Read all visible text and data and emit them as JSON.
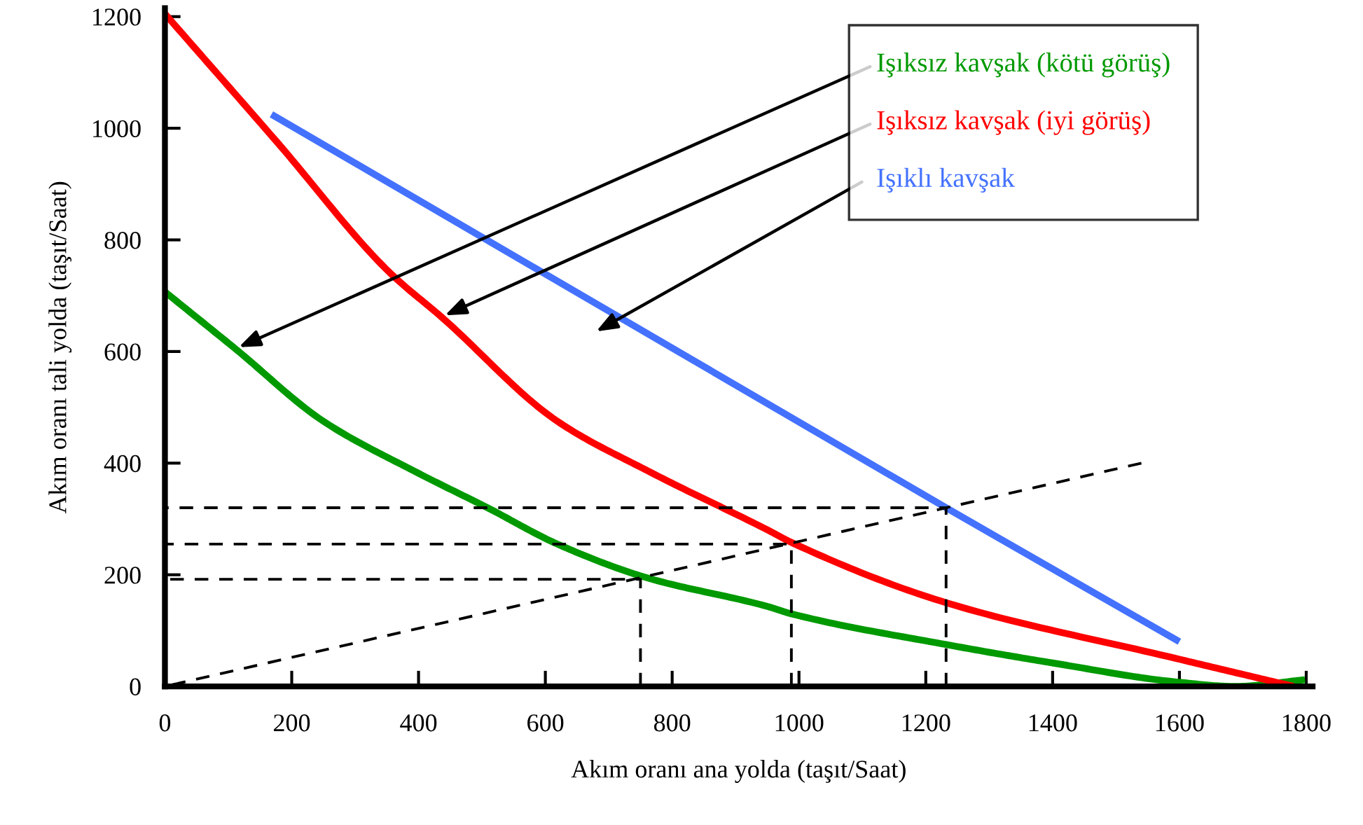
{
  "chart_data": {
    "type": "line",
    "xlabel": "Akım oranı ana yolda (taşıt/Saat)",
    "ylabel": "Akım oranı tali yolda (taşıt/Saat)",
    "xlim": [
      0,
      1810
    ],
    "ylim": [
      0,
      1215
    ],
    "xticks": [
      0,
      200,
      400,
      600,
      800,
      1000,
      1200,
      1400,
      1600,
      1800
    ],
    "yticks": [
      0,
      200,
      400,
      600,
      800,
      1000,
      1200
    ],
    "grid": false,
    "legend": "top right",
    "line_style": "solid",
    "marker": "none",
    "series": [
      {
        "name": "Işıksız kavşak (kötü görüş)",
        "color": "#009900",
        "x": [
          0,
          111,
          250,
          398,
          509,
          619,
          759,
          951,
          988,
          1232,
          1400,
          1595,
          1688,
          1798
        ],
        "values": [
          707,
          605,
          475,
          383,
          320,
          255,
          195,
          143,
          130,
          75,
          42,
          8,
          0,
          12
        ]
      },
      {
        "name": "Işıksız kavşak (iyi görüş)",
        "color": "#ff0000",
        "x": [
          0,
          177,
          354,
          436,
          619,
          767,
          951,
          988,
          1232,
          1595,
          1780
        ],
        "values": [
          1205,
          975,
          742,
          662,
          475,
          383,
          280,
          258,
          150,
          50,
          0
        ]
      },
      {
        "name": "Işıklı kavşak",
        "color": "#4472ff",
        "x": [
          168,
          1232,
          1600
        ],
        "values": [
          1025,
          320,
          80
        ]
      },
      {
        "color": "#000000",
        "line_style": "dashed",
        "x": [
          0,
          1540
        ],
        "values": [
          0,
          400
        ]
      },
      {
        "color": "#000000",
        "line_style": "dashed",
        "x": [
          0,
          750,
          750
        ],
        "values": [
          192,
          192,
          0
        ]
      },
      {
        "color": "#000000",
        "line_style": "dashed",
        "x": [
          0,
          988,
          988
        ],
        "values": [
          255,
          255,
          0
        ]
      },
      {
        "color": "#000000",
        "line_style": "dashed",
        "x": [
          0,
          1232,
          1232
        ],
        "values": [
          320,
          320,
          0
        ]
      }
    ]
  }
}
